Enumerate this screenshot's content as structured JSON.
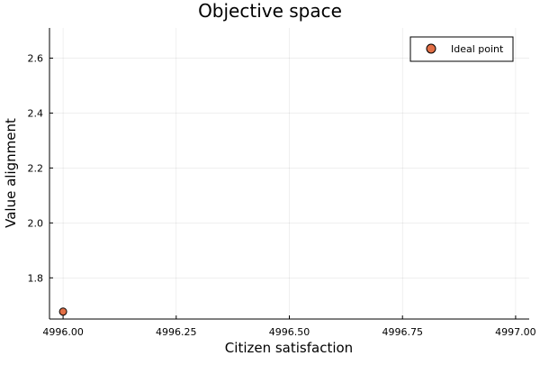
{
  "chart_data": {
    "type": "scatter",
    "title": "Objective space",
    "xlabel": "Citizen satisfaction",
    "ylabel": "Value alignment",
    "xlim": [
      4995.97,
      4997.03
    ],
    "ylim": [
      1.65,
      2.71
    ],
    "xticks": [
      4996.0,
      4996.25,
      4996.5,
      4996.75,
      4997.0
    ],
    "xtick_labels": [
      "4996.00",
      "4996.25",
      "4996.50",
      "4996.75",
      "4997.00"
    ],
    "yticks": [
      1.8,
      2.0,
      2.2,
      2.4,
      2.6
    ],
    "ytick_labels": [
      "1.8",
      "2.0",
      "2.2",
      "2.4",
      "2.6"
    ],
    "grid": true,
    "legend_position": "top-right",
    "series": [
      {
        "name": "Ideal point",
        "color": "#e26f46",
        "marker": "circle",
        "points": [
          {
            "x": 4996.0,
            "y": 1.677
          }
        ]
      }
    ]
  }
}
